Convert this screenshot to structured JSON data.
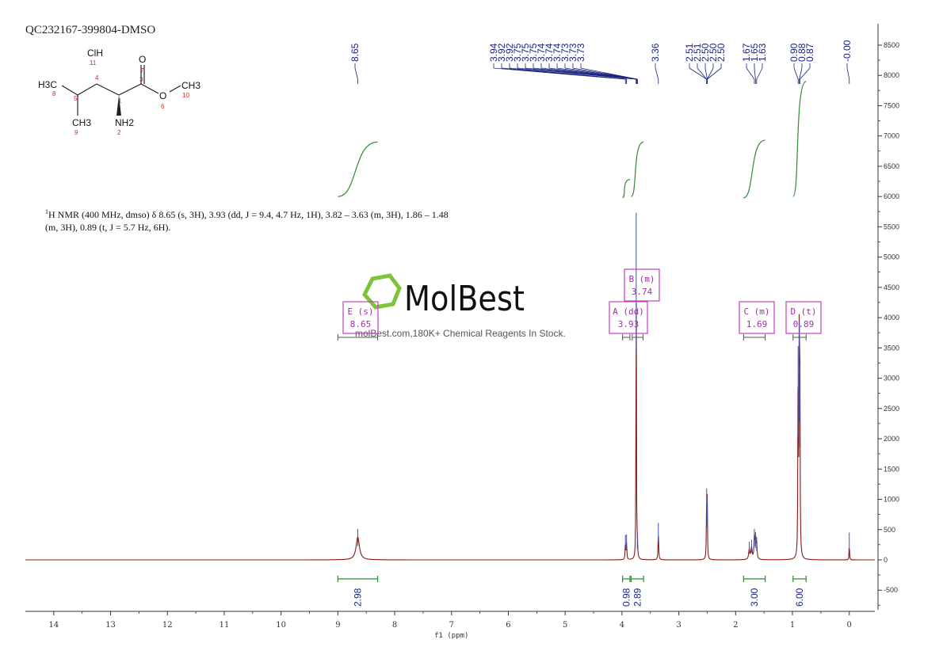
{
  "title": "QC232167-399804-DMSO",
  "description": {
    "nucleus_sup": "1",
    "line1": "H NMR (400 MHz, dmso) δ 8.65 (s, 3H), 3.93 (dd, J = 9.4, 4.7 Hz, 1H), 3.82 – 3.63 (m, 3H), 1.86 – 1.48",
    "line2": "(m, 3H), 0.89 (t, J = 5.7 Hz, 6H)."
  },
  "logo": {
    "brand": "MolBest",
    "tagline": "molBest.com,180K+ Chemical Reagents In Stock."
  },
  "structure": {
    "atoms": [
      {
        "label": "ClH",
        "num": "11"
      },
      {
        "label": "O",
        "num": "7"
      },
      {
        "label": "H3C",
        "num": "8"
      },
      {
        "label": "",
        "num": "4"
      },
      {
        "label": "",
        "num": "3"
      },
      {
        "label": "O",
        "num": "6"
      },
      {
        "label": "CH3",
        "num": "10"
      },
      {
        "label": "",
        "num": "5"
      },
      {
        "label": "",
        "num": "1"
      },
      {
        "label": "CH3",
        "num": "9"
      },
      {
        "label": "NH2",
        "num": "2"
      }
    ]
  },
  "chart_data": {
    "type": "line",
    "xlabel": "f1 (ppm)",
    "xlim": [
      14.5,
      -0.45
    ],
    "ylim": [
      -900,
      8800
    ],
    "x_ticks": [
      "14",
      "13",
      "12",
      "11",
      "10",
      "9",
      "8",
      "7",
      "6",
      "5",
      "4",
      "3",
      "2",
      "1",
      "0"
    ],
    "x_tick_values": [
      14,
      13,
      12,
      11,
      10,
      9,
      8,
      7,
      6,
      5,
      4,
      3,
      2,
      1,
      0
    ],
    "y_ticks": [
      "-500",
      "0",
      "500",
      "1000",
      "1500",
      "2000",
      "2500",
      "3000",
      "3500",
      "4000",
      "4500",
      "5000",
      "5500",
      "6000",
      "6500",
      "7000",
      "7500",
      "8000",
      "8500"
    ],
    "y_tick_values": [
      -500,
      0,
      500,
      1000,
      1500,
      2000,
      2500,
      3000,
      3500,
      4000,
      4500,
      5000,
      5500,
      6000,
      6500,
      7000,
      7500,
      8000,
      8500
    ],
    "peaks": [
      {
        "ppm": 8.65,
        "height": 380,
        "width": 0.035
      },
      {
        "ppm": 3.94,
        "height": 280,
        "width": 0.006
      },
      {
        "ppm": 3.92,
        "height": 290,
        "width": 0.006
      },
      {
        "ppm": 3.75,
        "height": 5600,
        "width": 0.004
      },
      {
        "ppm": 3.73,
        "height": 300,
        "width": 0.005
      },
      {
        "ppm": 3.36,
        "height": 480,
        "width": 0.006
      },
      {
        "ppm": 2.51,
        "height": 1050,
        "width": 0.005
      },
      {
        "ppm": 2.5,
        "height": 900,
        "width": 0.005
      },
      {
        "ppm": 1.76,
        "height": 170,
        "width": 0.012
      },
      {
        "ppm": 1.72,
        "height": 200,
        "width": 0.012
      },
      {
        "ppm": 1.67,
        "height": 380,
        "width": 0.008
      },
      {
        "ppm": 1.65,
        "height": 330,
        "width": 0.008
      },
      {
        "ppm": 1.63,
        "height": 250,
        "width": 0.008
      },
      {
        "ppm": 0.9,
        "height": 3400,
        "width": 0.005
      },
      {
        "ppm": 0.88,
        "height": 3800,
        "width": 0.005
      },
      {
        "ppm": 0.87,
        "height": 3100,
        "width": 0.005
      },
      {
        "ppm": 0.0,
        "height": 320,
        "width": 0.004
      }
    ],
    "peak_labels": [
      {
        "text": "8.65",
        "ppm": 8.65
      },
      {
        "text": "3.94",
        "ppm": 3.94
      },
      {
        "text": "3.92",
        "ppm": 3.92
      },
      {
        "text": "3.92",
        "ppm": 3.92
      },
      {
        "text": "3.75",
        "ppm": 3.75
      },
      {
        "text": "3.75",
        "ppm": 3.75
      },
      {
        "text": "3.75",
        "ppm": 3.75
      },
      {
        "text": "3.74",
        "ppm": 3.74
      },
      {
        "text": "3.74",
        "ppm": 3.74
      },
      {
        "text": "3.74",
        "ppm": 3.74
      },
      {
        "text": "3.73",
        "ppm": 3.73
      },
      {
        "text": "3.73",
        "ppm": 3.73
      },
      {
        "text": "3.73",
        "ppm": 3.73
      },
      {
        "text": "3.36",
        "ppm": 3.36
      },
      {
        "text": "2.51",
        "ppm": 2.51
      },
      {
        "text": "2.51",
        "ppm": 2.51
      },
      {
        "text": "2.50",
        "ppm": 2.5
      },
      {
        "text": "2.50",
        "ppm": 2.5
      },
      {
        "text": "2.50",
        "ppm": 2.5
      },
      {
        "text": "1.67",
        "ppm": 1.67
      },
      {
        "text": "1.65",
        "ppm": 1.65
      },
      {
        "text": "1.63",
        "ppm": 1.63
      },
      {
        "text": "0.90",
        "ppm": 0.9
      },
      {
        "text": "0.88",
        "ppm": 0.88
      },
      {
        "text": "0.87",
        "ppm": 0.87
      },
      {
        "text": "-0.00",
        "ppm": 0.0
      }
    ],
    "integrals": [
      {
        "from": 9.0,
        "to": 8.3,
        "value": "2.98",
        "level": 6000,
        "rise": 900
      },
      {
        "from": 3.99,
        "to": 3.86,
        "value": "0.98",
        "level": 5980,
        "rise": 300
      },
      {
        "from": 3.84,
        "to": 3.62,
        "value": "2.89",
        "level": 6000,
        "rise": 900
      },
      {
        "from": 1.86,
        "to": 1.48,
        "value": "3.00",
        "level": 5980,
        "rise": 950
      },
      {
        "from": 0.99,
        "to": 0.76,
        "value": "6.00",
        "level": 6000,
        "rise": 1900
      }
    ],
    "multiplets": [
      {
        "label": "E (s)",
        "shift": "8.65",
        "ppm": 8.65,
        "range": [
          9.0,
          8.3
        ]
      },
      {
        "label": "B (m)",
        "shift": "3.74",
        "ppm": 3.74,
        "range": [
          3.82,
          3.63
        ]
      },
      {
        "label": "A (dd)",
        "shift": "3.93",
        "ppm": 3.93,
        "range": [
          3.99,
          3.86
        ]
      },
      {
        "label": "C (m)",
        "shift": "1.69",
        "ppm": 1.69,
        "range": [
          1.86,
          1.48
        ]
      },
      {
        "label": "D (t)",
        "shift": "0.89",
        "ppm": 0.89,
        "range": [
          0.99,
          0.76
        ]
      }
    ],
    "colors": {
      "spectrum": "#8b1a1a",
      "integral": "#2e8b2e",
      "peak_label": "#1a237e",
      "multiplet": "#c040c0",
      "axis": "#333333",
      "logo": "#7cc43a"
    }
  }
}
